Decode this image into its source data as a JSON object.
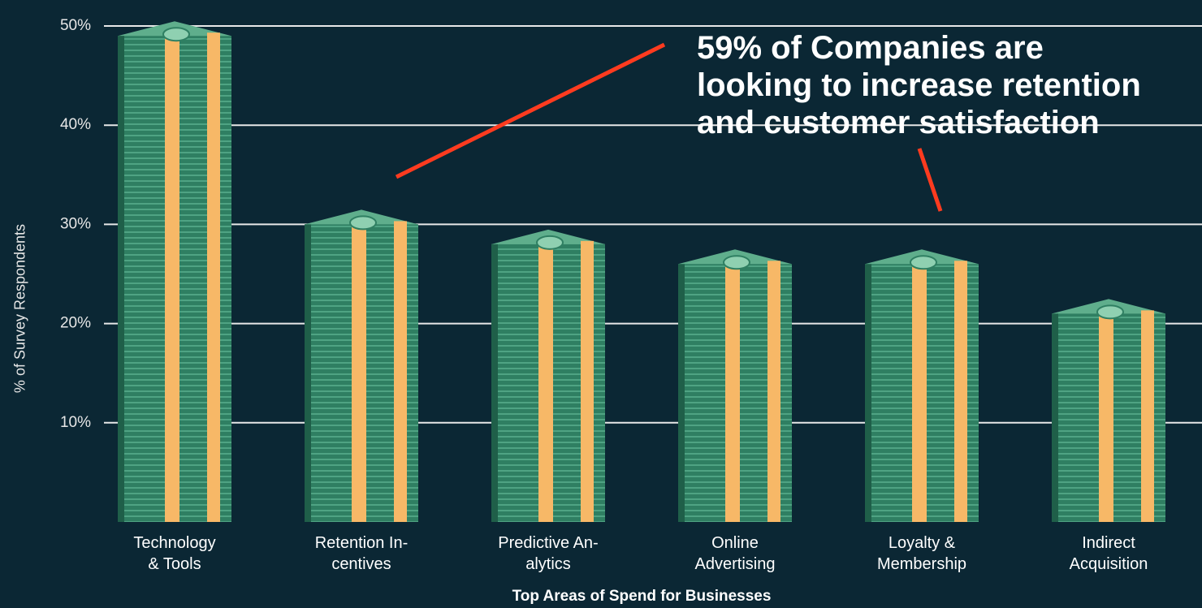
{
  "chart_data": {
    "type": "bar",
    "x_label": "Top Areas of Spend for Businesses",
    "y_label": "% of Survey Respondents",
    "annotation": "59% of Companies are\nlooking to increase retention\nand customer satisfaction",
    "categories": [
      "Technology\n& Tools",
      "Retention In-\ncentives",
      "Predictive An-\nalytics",
      "Online\nAdvertising",
      "Loyalty &\nMembership",
      "Indirect\nAcquisition"
    ],
    "values": [
      49,
      30,
      28,
      26,
      26,
      21
    ],
    "color": "#2f7f62",
    "ylim": [
      0,
      50
    ],
    "yticks": [
      {
        "value": 10,
        "label": "10%"
      },
      {
        "value": 20,
        "label": "20%"
      },
      {
        "value": 30,
        "label": "30%"
      },
      {
        "value": 40,
        "label": "40%"
      },
      {
        "value": 50,
        "label": "50%"
      }
    ],
    "grid": true
  }
}
